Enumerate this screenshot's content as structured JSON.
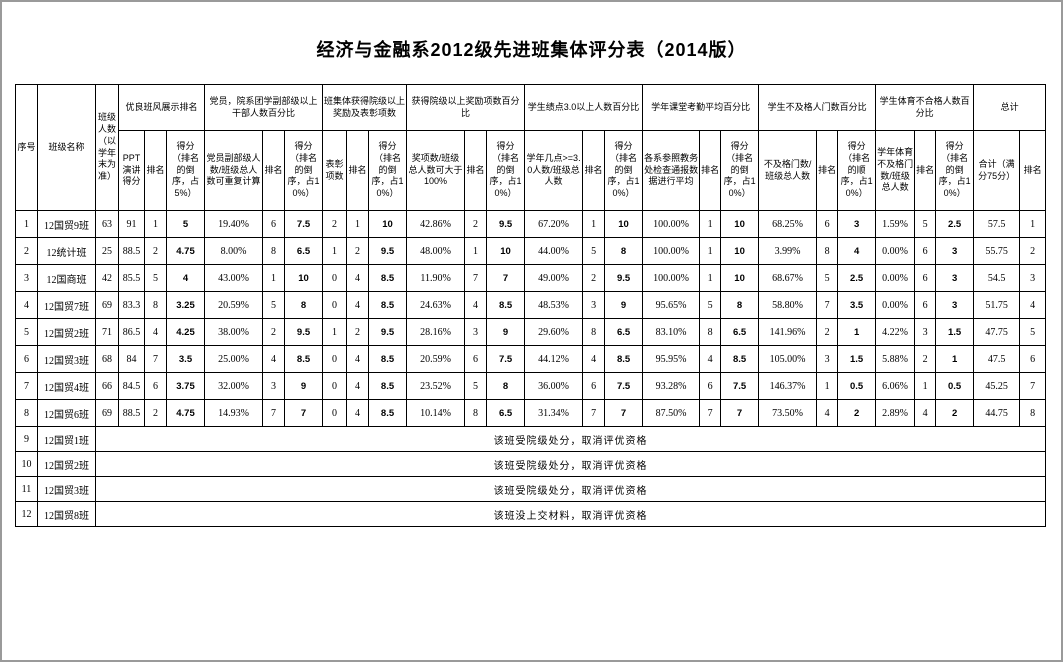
{
  "title": "经济与金融系2012级先进班集体评分表（2014版）",
  "colors": {
    "table_border": "#000000",
    "frame_border": "#9a9a9a",
    "background": "#ffffff",
    "text": "#000000"
  },
  "table": {
    "simple_headers": [
      {
        "label": "序号"
      },
      {
        "label": "班级名称"
      },
      {
        "label": "班级人数（以学年末为准）"
      }
    ],
    "groups": [
      {
        "label": "优良班风展示排名",
        "subs": [
          "PPT演讲得分",
          "排名",
          "得分（排名的倒序，占5%）"
        ]
      },
      {
        "label": "党员，院系团学副部级以上干部人数百分比",
        "subs": [
          "党员副部级人数/班级总人数可重复计算",
          "排名",
          "得分（排名的倒序，占10%）"
        ]
      },
      {
        "label": "班集体获得院级以上奖励及表彰项数",
        "subs": [
          "表彰项数",
          "排名",
          "得分（排名的倒序，占10%）"
        ]
      },
      {
        "label": "获得院级以上奖励项数百分比",
        "subs": [
          "奖项数/班级总人数可大于100%",
          "排名",
          "得分（排名的倒序，占10%）"
        ]
      },
      {
        "label": "学生绩点3.0以上人数百分比",
        "subs": [
          "学年几点>=3.0人数/班级总人数",
          "排名",
          "得分（排名的倒序，占10%）"
        ]
      },
      {
        "label": "学年课堂考勤平均百分比",
        "subs": [
          "各系参照教务处检查通报数据进行平均",
          "排名",
          "得分（排名的倒序，占10%）"
        ]
      },
      {
        "label": "学生不及格人门数百分比",
        "subs": [
          "不及格门数/班级总人数",
          "排名",
          "得分（排名的顺序，占10%）"
        ]
      },
      {
        "label": "学生体育不合格人数百分比",
        "subs": [
          "学年体育不及格门数/班级总人数",
          "排名",
          "得分（排名的倒序，占10%）"
        ]
      },
      {
        "label": "总计",
        "subs": [
          "合计（满分75分）",
          "排名"
        ]
      }
    ],
    "rows": [
      [
        "1",
        "12国贸9班",
        "63",
        "91",
        "1",
        "5",
        "19.40%",
        "6",
        "7.5",
        "2",
        "1",
        "10",
        "42.86%",
        "2",
        "9.5",
        "67.20%",
        "1",
        "10",
        "100.00%",
        "1",
        "10",
        "68.25%",
        "6",
        "3",
        "1.59%",
        "5",
        "2.5",
        "57.5",
        "1"
      ],
      [
        "2",
        "12统计班",
        "25",
        "88.5",
        "2",
        "4.75",
        "8.00%",
        "8",
        "6.5",
        "1",
        "2",
        "9.5",
        "48.00%",
        "1",
        "10",
        "44.00%",
        "5",
        "8",
        "100.00%",
        "1",
        "10",
        "3.99%",
        "8",
        "4",
        "0.00%",
        "6",
        "3",
        "55.75",
        "2"
      ],
      [
        "3",
        "12国商班",
        "42",
        "85.5",
        "5",
        "4",
        "43.00%",
        "1",
        "10",
        "0",
        "4",
        "8.5",
        "11.90%",
        "7",
        "7",
        "49.00%",
        "2",
        "9.5",
        "100.00%",
        "1",
        "10",
        "68.67%",
        "5",
        "2.5",
        "0.00%",
        "6",
        "3",
        "54.5",
        "3"
      ],
      [
        "4",
        "12国贸7班",
        "69",
        "83.3",
        "8",
        "3.25",
        "20.59%",
        "5",
        "8",
        "0",
        "4",
        "8.5",
        "24.63%",
        "4",
        "8.5",
        "48.53%",
        "3",
        "9",
        "95.65%",
        "5",
        "8",
        "58.80%",
        "7",
        "3.5",
        "0.00%",
        "6",
        "3",
        "51.75",
        "4"
      ],
      [
        "5",
        "12国贸2班",
        "71",
        "86.5",
        "4",
        "4.25",
        "38.00%",
        "2",
        "9.5",
        "1",
        "2",
        "9.5",
        "28.16%",
        "3",
        "9",
        "29.60%",
        "8",
        "6.5",
        "83.10%",
        "8",
        "6.5",
        "141.96%",
        "2",
        "1",
        "4.22%",
        "3",
        "1.5",
        "47.75",
        "5"
      ],
      [
        "6",
        "12国贸3班",
        "68",
        "84",
        "7",
        "3.5",
        "25.00%",
        "4",
        "8.5",
        "0",
        "4",
        "8.5",
        "20.59%",
        "6",
        "7.5",
        "44.12%",
        "4",
        "8.5",
        "95.95%",
        "4",
        "8.5",
        "105.00%",
        "3",
        "1.5",
        "5.88%",
        "2",
        "1",
        "47.5",
        "6"
      ],
      [
        "7",
        "12国贸4班",
        "66",
        "84.5",
        "6",
        "3.75",
        "32.00%",
        "3",
        "9",
        "0",
        "4",
        "8.5",
        "23.52%",
        "5",
        "8",
        "36.00%",
        "6",
        "7.5",
        "93.28%",
        "6",
        "7.5",
        "146.37%",
        "1",
        "0.5",
        "6.06%",
        "1",
        "0.5",
        "45.25",
        "7"
      ],
      [
        "8",
        "12国贸6班",
        "69",
        "88.5",
        "2",
        "4.75",
        "14.93%",
        "7",
        "7",
        "0",
        "4",
        "8.5",
        "10.14%",
        "8",
        "6.5",
        "31.34%",
        "7",
        "7",
        "87.50%",
        "7",
        "7",
        "73.50%",
        "4",
        "2",
        "2.89%",
        "4",
        "2",
        "44.75",
        "8"
      ]
    ],
    "disqualified_rows": [
      {
        "no": "9",
        "name": "12国贸1班",
        "note": "该班受院级处分，取消评优资格"
      },
      {
        "no": "10",
        "name": "12国贸2班",
        "note": "该班受院级处分，取消评优资格"
      },
      {
        "no": "11",
        "name": "12国贸3班",
        "note": "该班受院级处分，取消评优资格"
      },
      {
        "no": "12",
        "name": "12国贸8班",
        "note": "该班没上交材料，取消评优资格"
      }
    ]
  }
}
